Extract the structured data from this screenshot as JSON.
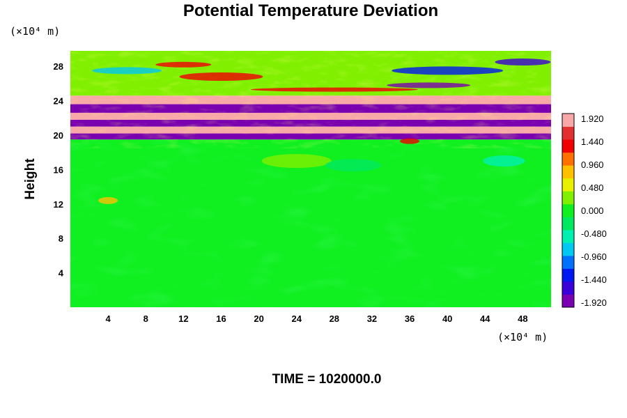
{
  "chart_data": {
    "type": "heatmap",
    "title": "Potential Temperature Deviation",
    "xlabel": "",
    "ylabel": "Height",
    "x_unit": "(×10⁴ m)",
    "y_unit": "(×10⁴ m)",
    "xlim": [
      0,
      51
    ],
    "ylim": [
      0,
      29.8
    ],
    "x_ticks": [
      4,
      8,
      12,
      16,
      20,
      24,
      28,
      32,
      36,
      40,
      44,
      48
    ],
    "y_ticks": [
      4,
      8,
      12,
      16,
      20,
      24,
      28
    ],
    "colorbar": {
      "min": -1.92,
      "max": 1.92,
      "ticks": [
        "1.920",
        "1.440",
        "0.960",
        "0.480",
        "0.000",
        "-0.480",
        "-0.960",
        "-1.440",
        "-1.920"
      ],
      "colors_low_to_high": [
        "#7a00b0",
        "#3a00d8",
        "#0018f0",
        "#0070ff",
        "#00c8f0",
        "#00f0b0",
        "#00e860",
        "#10f020",
        "#80f000",
        "#e8f000",
        "#ffc000",
        "#ff7000",
        "#f00000",
        "#e03030",
        "#f8a8a8"
      ]
    },
    "field_description_bands": [
      {
        "y_range": [
          0,
          19.5
        ],
        "value": 0.05
      },
      {
        "y_range": [
          19.5,
          20.2
        ],
        "value": -1.92
      },
      {
        "y_range": [
          20.2,
          21.0
        ],
        "value": 1.92
      },
      {
        "y_range": [
          21.0,
          21.8
        ],
        "value": -1.9
      },
      {
        "y_range": [
          21.8,
          22.6
        ],
        "value": 1.92
      },
      {
        "y_range": [
          22.6,
          23.6
        ],
        "value": -1.92
      },
      {
        "y_range": [
          23.6,
          24.6
        ],
        "value": 1.92
      },
      {
        "y_range": [
          24.6,
          29.8
        ],
        "value": 0.3
      }
    ]
  },
  "footer": {
    "time_label": "TIME = 1020000.0"
  }
}
